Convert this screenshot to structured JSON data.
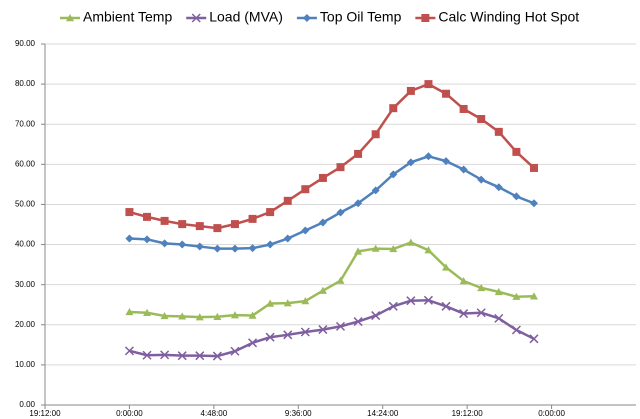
{
  "chart_data": {
    "type": "line",
    "x": [
      0,
      1,
      2,
      3,
      4,
      5,
      6,
      7,
      8,
      9,
      10,
      11,
      12,
      13,
      14,
      15,
      16,
      17,
      18,
      19,
      20,
      21,
      22,
      23
    ],
    "series": [
      {
        "name": "Ambient Temp",
        "color": "#9bbb59",
        "marker": "triangle",
        "values": [
          23.2,
          23.0,
          22.2,
          22.1,
          21.9,
          22.0,
          22.4,
          22.3,
          25.3,
          25.4,
          25.9,
          28.5,
          31.0,
          38.3,
          39.0,
          38.9,
          40.5,
          38.6,
          34.3,
          30.9,
          29.2,
          28.2,
          27.0,
          27.1
        ]
      },
      {
        "name": "Load (MVA)",
        "color": "#7f5fa0",
        "marker": "x",
        "values": [
          13.5,
          12.4,
          12.5,
          12.3,
          12.3,
          12.2,
          13.4,
          15.5,
          16.9,
          17.5,
          18.2,
          18.8,
          19.6,
          20.8,
          22.3,
          24.6,
          26.0,
          26.1,
          24.6,
          22.8,
          23.0,
          21.6,
          18.7,
          16.5
        ]
      },
      {
        "name": "Top Oil Temp",
        "color": "#4f81bd",
        "marker": "diamond",
        "values": [
          41.5,
          41.3,
          40.3,
          40.0,
          39.5,
          39.0,
          39.0,
          39.1,
          40.0,
          41.5,
          43.5,
          45.5,
          48.0,
          50.3,
          53.5,
          57.5,
          60.5,
          62.0,
          60.8,
          58.7,
          56.2,
          54.3,
          52.0,
          50.3
        ]
      },
      {
        "name": "Calc Winding Hot Spot",
        "color": "#c0504d",
        "marker": "square",
        "values": [
          48.1,
          46.9,
          45.9,
          45.1,
          44.6,
          44.1,
          45.1,
          46.4,
          48.1,
          50.9,
          53.8,
          56.6,
          59.3,
          62.6,
          67.5,
          74.0,
          78.3,
          80.0,
          77.6,
          73.8,
          71.3,
          68.1,
          63.1,
          59.1
        ]
      }
    ],
    "xlim": [
      -4.8,
      28.8
    ],
    "xticks": [
      {
        "value": -4.8,
        "label": "19:12:00"
      },
      {
        "value": 0,
        "label": "0:00:00"
      },
      {
        "value": 4.8,
        "label": "4:48:00"
      },
      {
        "value": 9.6,
        "label": "9:36:00"
      },
      {
        "value": 14.4,
        "label": "14:24:00"
      },
      {
        "value": 19.2,
        "label": "19:12:00"
      },
      {
        "value": 24,
        "label": "0:00:00"
      }
    ],
    "ylim": [
      0,
      90
    ],
    "yticks": [
      {
        "value": 0,
        "label": "0.00"
      },
      {
        "value": 10,
        "label": "10.00"
      },
      {
        "value": 20,
        "label": "20.00"
      },
      {
        "value": 30,
        "label": "30.00"
      },
      {
        "value": 40,
        "label": "40.00"
      },
      {
        "value": 50,
        "label": "50.00"
      },
      {
        "value": 60,
        "label": "60.00"
      },
      {
        "value": 70,
        "label": "70.00"
      },
      {
        "value": 80,
        "label": "80.00"
      },
      {
        "value": 90,
        "label": "90.00"
      }
    ],
    "grid": true,
    "legend": "top"
  }
}
